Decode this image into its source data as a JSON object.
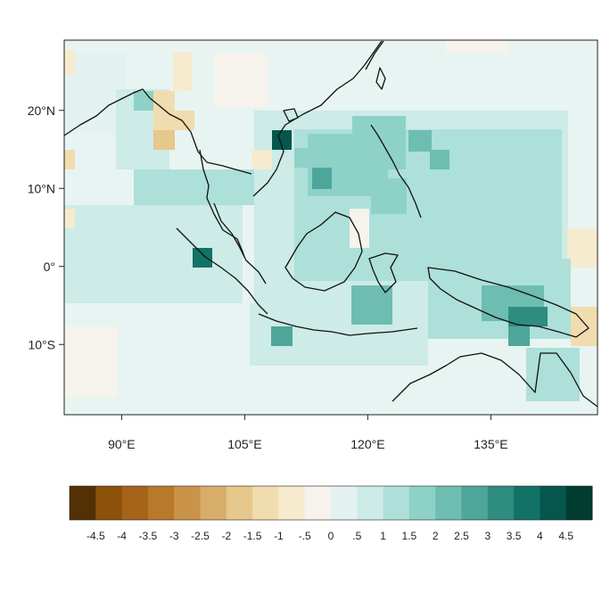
{
  "map": {
    "lon_range": [
      83,
      148
    ],
    "lat_range": [
      -19,
      29
    ],
    "lon_ticks": [
      {
        "value": 90,
        "label": "90°E"
      },
      {
        "value": 105,
        "label": "105°E"
      },
      {
        "value": 120,
        "label": "120°E"
      },
      {
        "value": 135,
        "label": "135°E"
      }
    ],
    "lat_ticks": [
      {
        "value": 20,
        "label": "20°N"
      },
      {
        "value": 10,
        "label": "10°N"
      },
      {
        "value": 0,
        "label": "0°"
      },
      {
        "value": -10,
        "label": "10°S"
      }
    ]
  },
  "colorbar": {
    "colors": [
      "#543005",
      "#8c510a",
      "#a6631a",
      "#b8792a",
      "#c99449",
      "#d8ad6a",
      "#e6c78c",
      "#f0dcae",
      "#f6ebcf",
      "#f5f3ec",
      "#e3f2f0",
      "#cdebe7",
      "#ade0d9",
      "#8ed2c7",
      "#6ebdb1",
      "#4ea69a",
      "#2f8c80",
      "#137267",
      "#05574e",
      "#003c30"
    ],
    "labels": [
      "-4.5",
      "-4",
      "-3.5",
      "-3",
      "-2.5",
      "-2",
      "-1.5",
      "-1",
      "-.5",
      "0",
      ".5",
      "1",
      "1.5",
      "2",
      "2.5",
      "3",
      "3.5",
      "4",
      "4.5"
    ]
  }
}
